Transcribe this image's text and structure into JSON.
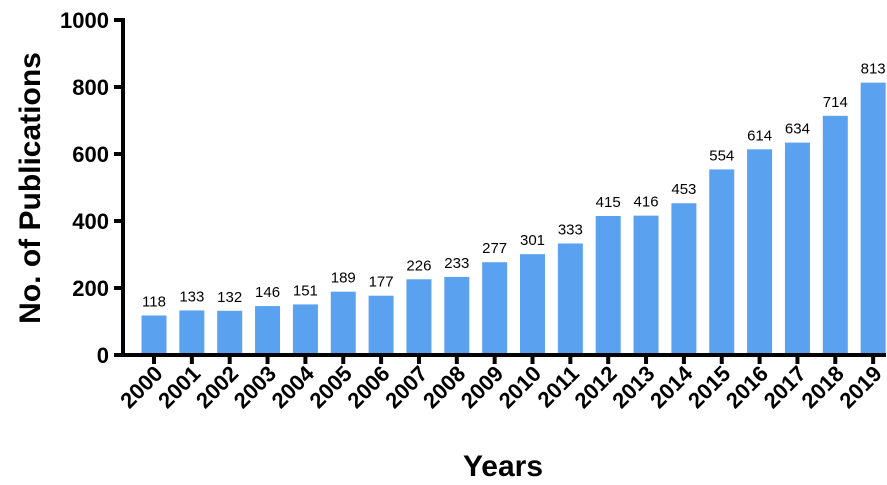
{
  "chart_data": {
    "type": "bar",
    "title": "",
    "xlabel": "Years",
    "ylabel": "No. of Publications",
    "categories": [
      "2000",
      "2001",
      "2002",
      "2003",
      "2004",
      "2005",
      "2006",
      "2007",
      "2008",
      "2009",
      "2010",
      "2011",
      "2012",
      "2013",
      "2014",
      "2015",
      "2016",
      "2017",
      "2018",
      "2019"
    ],
    "values": [
      118,
      133,
      132,
      146,
      151,
      189,
      177,
      226,
      233,
      277,
      301,
      333,
      415,
      416,
      453,
      554,
      614,
      634,
      714,
      813
    ],
    "ylim": [
      0,
      1000
    ],
    "yticks": [
      0,
      200,
      400,
      600,
      800,
      1000
    ],
    "grid": false,
    "legend": "none",
    "bar_color": "#5aa2ef",
    "axis_color": "#000000"
  }
}
